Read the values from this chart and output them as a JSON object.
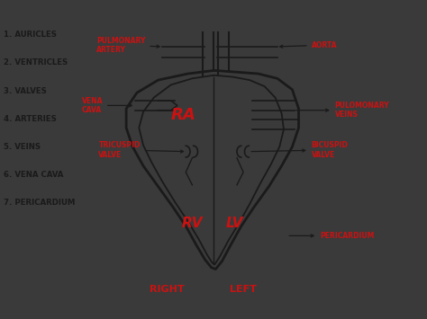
{
  "bg_outer": "#3a3a3a",
  "bg_inner": "#f5f5f0",
  "red_color": "#cc1111",
  "black_color": "#1a1a1a",
  "list_labels": [
    "1. AURICLES",
    "2. VENTRICLES",
    "3. VALVES",
    "4. ARTERIES",
    "5. VEINS",
    "6. VENA CAVA",
    "7. PERICARDIUM"
  ],
  "heart_outer": {
    "x": [
      5.0,
      4.4,
      3.7,
      3.2,
      2.95,
      2.95,
      3.1,
      3.35,
      3.7,
      4.05,
      4.35,
      4.6,
      4.8,
      4.95,
      5.05,
      5.2,
      5.4,
      5.65,
      5.95,
      6.3,
      6.6,
      6.85,
      7.0,
      7.0,
      6.85,
      6.5,
      6.05,
      5.55,
      5.05
    ],
    "y": [
      7.8,
      7.7,
      7.5,
      7.1,
      6.6,
      6.0,
      5.4,
      4.8,
      4.15,
      3.5,
      2.9,
      2.3,
      1.85,
      1.6,
      1.55,
      1.8,
      2.3,
      2.9,
      3.5,
      4.15,
      4.8,
      5.4,
      6.0,
      6.6,
      7.2,
      7.55,
      7.7,
      7.75,
      7.8
    ]
  },
  "heart_inner": {
    "x": [
      5.0,
      4.5,
      4.0,
      3.6,
      3.35,
      3.25,
      3.35,
      3.55,
      3.8,
      4.1,
      4.4,
      4.65,
      4.85,
      4.97,
      5.03,
      5.15,
      5.35,
      5.6,
      5.85,
      6.1,
      6.35,
      6.55,
      6.65,
      6.6,
      6.45,
      6.2,
      5.85,
      5.45,
      5.03
    ],
    "y": [
      7.65,
      7.55,
      7.35,
      6.95,
      6.5,
      6.0,
      5.45,
      4.9,
      4.3,
      3.65,
      3.05,
      2.5,
      2.0,
      1.75,
      1.7,
      1.95,
      2.45,
      3.0,
      3.6,
      4.25,
      4.85,
      5.4,
      5.95,
      6.45,
      6.95,
      7.3,
      7.5,
      7.6,
      7.65
    ]
  }
}
